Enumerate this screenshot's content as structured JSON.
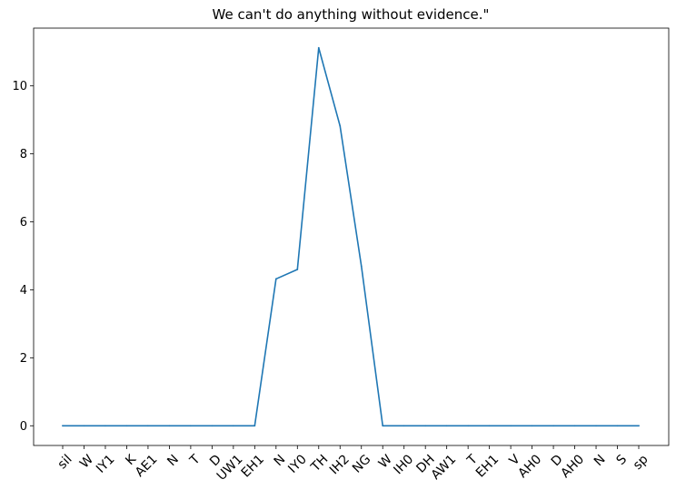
{
  "chart_data": {
    "type": "line",
    "title": "We can't do anything without evidence.\"",
    "xlabel": "",
    "ylabel": "",
    "categories": [
      "sil",
      "W",
      "IY1",
      "K",
      "AE1",
      "N",
      "T",
      "D",
      "UW1",
      "EH1",
      "N",
      "IY0",
      "TH",
      "IH2",
      "NG",
      "W",
      "IH0",
      "DH",
      "AW1",
      "T",
      "EH1",
      "V",
      "AH0",
      "D",
      "AH0",
      "N",
      "S",
      "sp"
    ],
    "series": [
      {
        "color": "#1f77b4",
        "values": [
          0,
          0,
          0,
          0,
          0,
          0,
          0,
          0,
          0,
          0,
          4.32,
          4.6,
          11.12,
          8.82,
          4.7,
          0,
          0,
          0,
          0,
          0,
          0,
          0,
          0,
          0,
          0,
          0,
          0,
          0
        ]
      }
    ],
    "yticks": [
      0,
      2,
      4,
      6,
      8,
      10
    ],
    "ylim": [
      -0.58,
      11.7
    ],
    "grid": false,
    "legend": "none"
  }
}
